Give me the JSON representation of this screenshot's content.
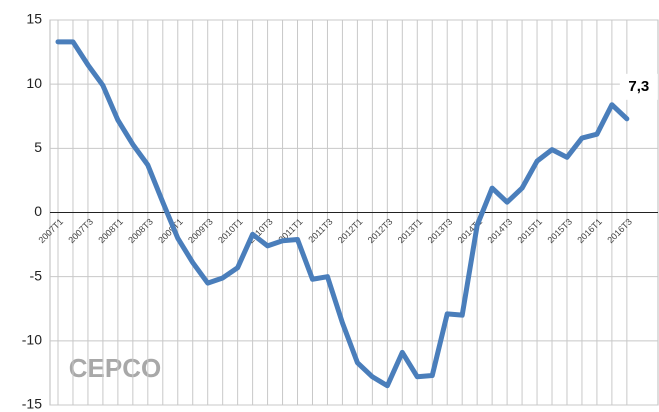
{
  "chart_data": {
    "type": "line",
    "categories": [
      "2007T1",
      null,
      "2007T3",
      null,
      "2008T1",
      null,
      "2008T3",
      null,
      "2009T1",
      null,
      "2009T3",
      null,
      "2010T1",
      null,
      "2010T3",
      null,
      "2011T1",
      null,
      "2011T3",
      null,
      "2012T1",
      null,
      "2012T3",
      null,
      "2013T1",
      null,
      "2013T3",
      null,
      "2014T1",
      null,
      "2014T3",
      null,
      "2015T1",
      null,
      "2015T3",
      null,
      "2016T1",
      null,
      "2016T3"
    ],
    "series": [
      {
        "color": "#4a7ebb",
        "values": [
          13.3,
          13.3,
          11.5,
          9.9,
          7.2,
          5.3,
          3.7,
          0.8,
          -2.0,
          -3.9,
          -5.5,
          -5.1,
          -4.3,
          -1.7,
          -2.6,
          -2.2,
          -2.1,
          -5.2,
          -5.0,
          -8.6,
          -11.7,
          -12.8,
          -13.5,
          -10.9,
          -12.8,
          -12.7,
          -7.9,
          -8.0,
          -1.0,
          1.9,
          0.8,
          1.9,
          4.0,
          4.9,
          4.3,
          5.8,
          6.1,
          8.4,
          7.3
        ],
        "value_labels": [
          null,
          null,
          null,
          null,
          null,
          null,
          null,
          null,
          null,
          null,
          null,
          null,
          null,
          null,
          null,
          null,
          null,
          null,
          null,
          null,
          null,
          null,
          null,
          null,
          null,
          null,
          null,
          null,
          null,
          null,
          null,
          null,
          null,
          null,
          null,
          null,
          null,
          null,
          "7,3"
        ]
      }
    ],
    "ylim": [
      -15,
      15
    ],
    "yticks": [
      15,
      10,
      5,
      0,
      -5,
      -10,
      -15
    ],
    "grid": true,
    "watermark": "CEPCO"
  }
}
